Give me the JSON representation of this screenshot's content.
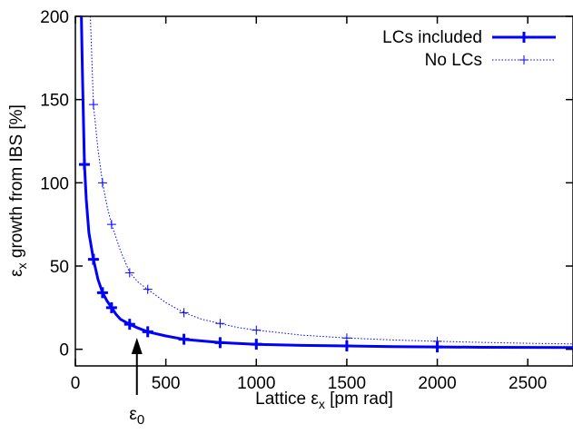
{
  "chart_data": {
    "type": "line",
    "xlabel_main": "Lattice ε",
    "xlabel_sub": "x",
    "xlabel_tail": " [pm rad]",
    "ylabel_main": "ε",
    "ylabel_sub": "x",
    "ylabel_tail": " growth from IBS [%]",
    "xlim": [
      0,
      2750
    ],
    "ylim": [
      -10,
      200
    ],
    "xticks": [
      0,
      500,
      1000,
      1500,
      2000,
      2500
    ],
    "yticks": [
      0,
      50,
      100,
      150,
      200
    ],
    "grid": false,
    "legend_position": "top-right",
    "annotation": {
      "text_main": "ε",
      "text_sub": "0",
      "x": 340
    },
    "series": [
      {
        "name": "LCs included",
        "color": "#0000ff",
        "style": "solid-thick",
        "line_x": [
          33,
          40,
          50,
          60,
          75,
          100,
          125,
          150,
          175,
          200,
          225,
          250,
          300,
          340,
          400,
          500,
          600,
          700,
          800,
          1000,
          1250,
          1500,
          1750,
          2000,
          2250,
          2500,
          2750
        ],
        "line_y": [
          200,
          160,
          111,
          90,
          70,
          54,
          42,
          34,
          29,
          25,
          21,
          18,
          15,
          13,
          10.5,
          8,
          6,
          5,
          4,
          3,
          2.3,
          2,
          1.6,
          1.4,
          1.2,
          1.1,
          1
        ],
        "marker_x": [
          50,
          100,
          150,
          200,
          300,
          400,
          600,
          800,
          1000,
          1500,
          2000
        ],
        "marker_y": [
          111,
          54,
          34,
          25,
          15,
          10.5,
          6,
          4,
          3,
          2,
          1.4
        ]
      },
      {
        "name": "No LCs",
        "color": "#0000ff",
        "style": "dotted-thin",
        "line_x": [
          83,
          100,
          125,
          150,
          175,
          200,
          250,
          300,
          350,
          400,
          500,
          600,
          700,
          800,
          900,
          1000,
          1250,
          1500,
          1750,
          2000,
          2250,
          2500,
          2750
        ],
        "line_y": [
          200,
          147,
          120,
          100,
          86,
          75,
          59,
          46,
          40,
          36,
          28,
          22,
          18,
          15.5,
          13,
          11.5,
          8.5,
          6.8,
          5.6,
          4.8,
          4.1,
          3.6,
          3.2
        ],
        "marker_x": [
          100,
          150,
          200,
          300,
          400,
          600,
          800,
          1000,
          1500,
          2000
        ],
        "marker_y": [
          147,
          100,
          75,
          46,
          36,
          22,
          15.5,
          11.5,
          6.8,
          4.8
        ]
      }
    ]
  }
}
